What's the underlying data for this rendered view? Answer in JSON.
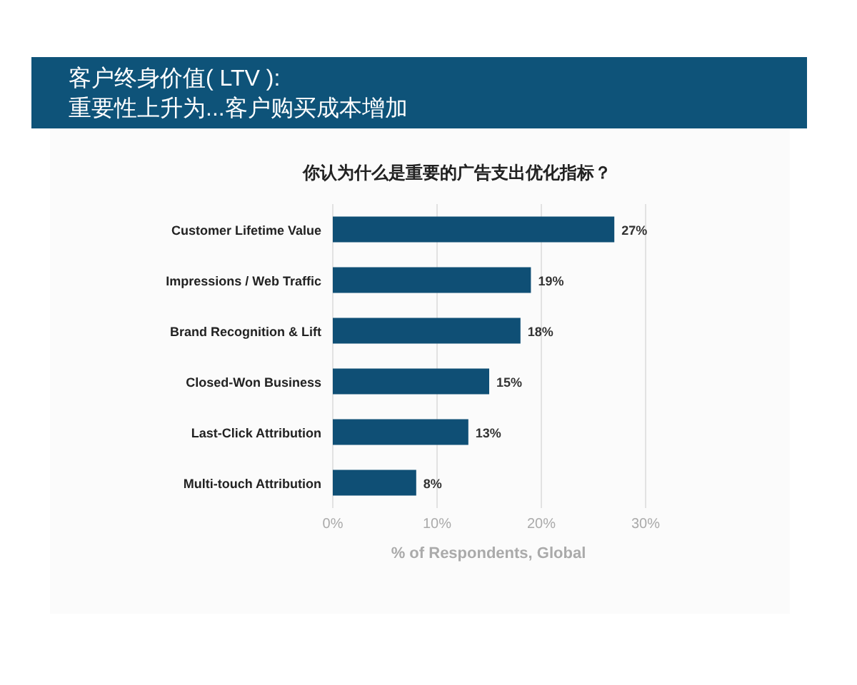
{
  "chart_data": {
    "type": "bar",
    "orientation": "horizontal",
    "title": "客户终身价值( LTV ):",
    "subtitle": "重要性上升为...客户购买成本增加",
    "annotations": [
      "你认为什么是重要的广告支出优化指标？"
    ],
    "categories": [
      "Customer Lifetime Value",
      "Impressions / Web Traffic",
      "Brand Recognition & Lift",
      "Closed-Won Business",
      "Last-Click Attribution",
      "Multi-touch Attribution"
    ],
    "values": [
      27,
      19,
      18,
      15,
      13,
      8
    ],
    "value_labels": [
      "27%",
      "19%",
      "18%",
      "15%",
      "13%",
      "8%"
    ],
    "color": "#0f4f75",
    "xlabel": "% of Respondents, Global",
    "xlim": [
      0,
      30
    ],
    "xticks": [
      {
        "value": 0,
        "label": "0%"
      },
      {
        "value": 10,
        "label": "10%"
      },
      {
        "value": 20,
        "label": "20%"
      },
      {
        "value": 30,
        "label": "30%"
      }
    ],
    "grid": "x"
  }
}
